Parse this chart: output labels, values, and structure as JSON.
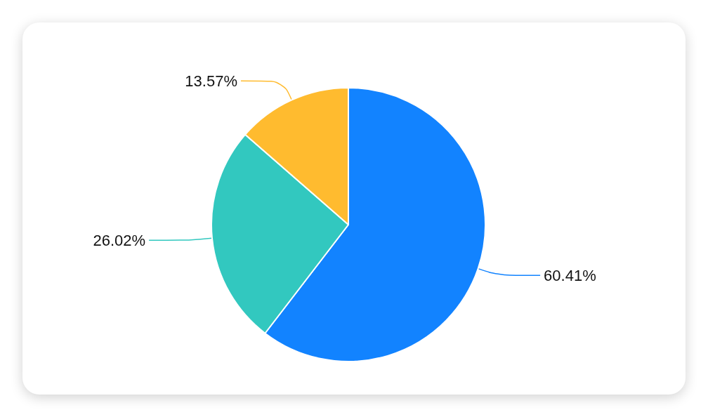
{
  "chart_data": {
    "type": "pie",
    "categories": [
      null,
      null,
      null
    ],
    "values": [
      60.41,
      26.02,
      13.57
    ],
    "colors": [
      "#1283ff",
      "#32c8bf",
      "#ffbb2f"
    ],
    "value_labels": [
      "60.41%",
      "26.02%",
      "13.57%"
    ]
  }
}
